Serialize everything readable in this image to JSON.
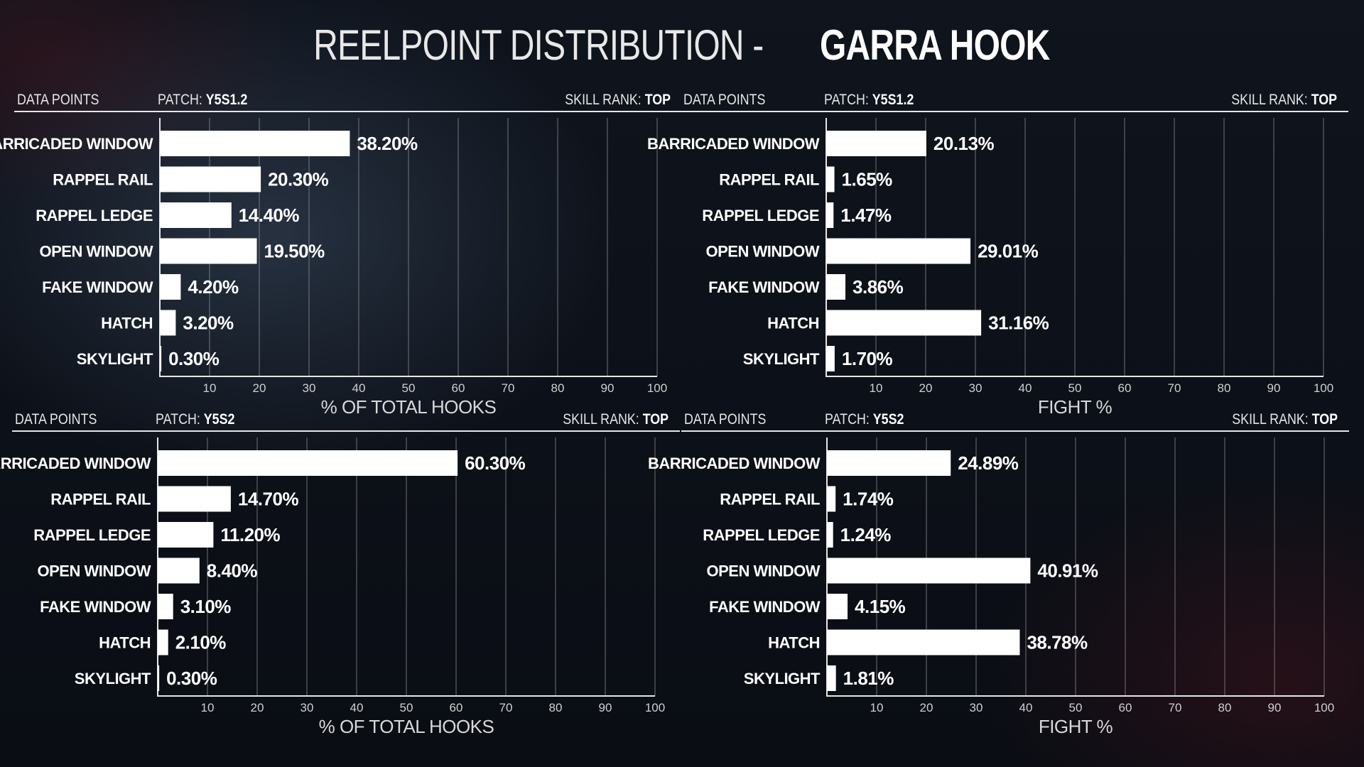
{
  "title": {
    "thin": "REELPOINT DISTRIBUTION - ",
    "bold": "GARRA HOOK"
  },
  "chart_data": [
    {
      "type": "bar",
      "orientation": "horizontal",
      "header": {
        "left": "DATA POINTS",
        "patch_label": "PATCH:",
        "patch_value": "Y5S1.2",
        "rank_label": "SKILL RANK:",
        "rank_value": "TOP"
      },
      "categories": [
        "BARRICADED WINDOW",
        "RAPPEL RAIL",
        "RAPPEL LEDGE",
        "OPEN WINDOW",
        "FAKE WINDOW",
        "HATCH",
        "SKYLIGHT"
      ],
      "values": [
        38.2,
        20.3,
        14.4,
        19.5,
        4.2,
        3.2,
        0.3
      ],
      "value_labels": [
        "38.20%",
        "20.30%",
        "14.40%",
        "19.50%",
        "4.20%",
        "3.20%",
        "0.30%"
      ],
      "xlabel": "% OF TOTAL HOOKS",
      "xlim": [
        0,
        100
      ],
      "xticks": [
        10,
        20,
        30,
        40,
        50,
        60,
        70,
        80,
        90,
        100
      ],
      "grid": true
    },
    {
      "type": "bar",
      "orientation": "horizontal",
      "header": {
        "left": "DATA POINTS",
        "patch_label": "PATCH:",
        "patch_value": "Y5S1.2",
        "rank_label": "SKILL RANK:",
        "rank_value": "TOP"
      },
      "categories": [
        "BARRICADED WINDOW",
        "RAPPEL RAIL",
        "RAPPEL LEDGE",
        "OPEN WINDOW",
        "FAKE WINDOW",
        "HATCH",
        "SKYLIGHT"
      ],
      "values": [
        20.13,
        1.65,
        1.47,
        29.01,
        3.86,
        31.16,
        1.7
      ],
      "value_labels": [
        "20.13%",
        "1.65%",
        "1.47%",
        "29.01%",
        "3.86%",
        "31.16%",
        "1.70%"
      ],
      "xlabel": "FIGHT %",
      "xlim": [
        0,
        100
      ],
      "xticks": [
        10,
        20,
        30,
        40,
        50,
        60,
        70,
        80,
        90,
        100
      ],
      "grid": true
    },
    {
      "type": "bar",
      "orientation": "horizontal",
      "header": {
        "left": "DATA POINTS",
        "patch_label": "PATCH:",
        "patch_value": "Y5S2",
        "rank_label": "SKILL RANK:",
        "rank_value": "TOP"
      },
      "categories": [
        "BARRICADED WINDOW",
        "RAPPEL RAIL",
        "RAPPEL LEDGE",
        "OPEN WINDOW",
        "FAKE WINDOW",
        "HATCH",
        "SKYLIGHT"
      ],
      "values": [
        60.3,
        14.7,
        11.2,
        8.4,
        3.1,
        2.1,
        0.3
      ],
      "value_labels": [
        "60.30%",
        "14.70%",
        "11.20%",
        "8.40%",
        "3.10%",
        "2.10%",
        "0.30%"
      ],
      "xlabel": "% OF TOTAL HOOKS",
      "xlim": [
        0,
        100
      ],
      "xticks": [
        10,
        20,
        30,
        40,
        50,
        60,
        70,
        80,
        90,
        100
      ],
      "grid": true
    },
    {
      "type": "bar",
      "orientation": "horizontal",
      "header": {
        "left": "DATA POINTS",
        "patch_label": "PATCH:",
        "patch_value": "Y5S2",
        "rank_label": "SKILL RANK:",
        "rank_value": "TOP"
      },
      "categories": [
        "BARRICADED WINDOW",
        "RAPPEL RAIL",
        "RAPPEL LEDGE",
        "OPEN WINDOW",
        "FAKE WINDOW",
        "HATCH",
        "SKYLIGHT"
      ],
      "values": [
        24.89,
        1.74,
        1.24,
        40.91,
        4.15,
        38.78,
        1.81
      ],
      "value_labels": [
        "24.89%",
        "1.74%",
        "1.24%",
        "40.91%",
        "4.15%",
        "38.78%",
        "1.81%"
      ],
      "xlabel": "FIGHT %",
      "xlim": [
        0,
        100
      ],
      "xticks": [
        10,
        20,
        30,
        40,
        50,
        60,
        70,
        80,
        90,
        100
      ],
      "grid": true
    }
  ],
  "colors": {
    "bar": "#ffffff",
    "grid": "#9a9a9a",
    "axis": "#e6e6e6",
    "background": "#0b0f17"
  }
}
